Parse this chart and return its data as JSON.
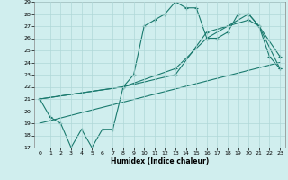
{
  "xlabel": "Humidex (Indice chaleur)",
  "bg_color": "#d0eeee",
  "line_color": "#1a7a6e",
  "grid_color": "#b0d8d8",
  "xlim": [
    -0.5,
    23.5
  ],
  "ylim": [
    17,
    29
  ],
  "xticks": [
    0,
    1,
    2,
    3,
    4,
    5,
    6,
    7,
    8,
    9,
    10,
    11,
    12,
    13,
    14,
    15,
    16,
    17,
    18,
    19,
    20,
    21,
    22,
    23
  ],
  "yticks": [
    17,
    18,
    19,
    20,
    21,
    22,
    23,
    24,
    25,
    26,
    27,
    28,
    29
  ],
  "series": [
    {
      "x": [
        0,
        1,
        2,
        3,
        4,
        5,
        6,
        7,
        8,
        9,
        10,
        11,
        12,
        13,
        14,
        15,
        16,
        17,
        18,
        19,
        20,
        21,
        22,
        23
      ],
      "y": [
        21,
        19.5,
        19,
        17,
        18.5,
        17,
        18.5,
        18.5,
        22,
        23,
        27,
        27.5,
        28,
        29,
        28.5,
        28.5,
        26,
        26,
        26.5,
        28,
        28,
        27,
        24.5,
        23.5
      ],
      "marker": "+"
    },
    {
      "x": [
        0,
        23
      ],
      "y": [
        19,
        24
      ],
      "marker": null
    },
    {
      "x": [
        0,
        8,
        13,
        16,
        20,
        21,
        23
      ],
      "y": [
        21,
        22,
        23,
        26.5,
        27.5,
        27,
        23.5
      ],
      "marker": "+"
    },
    {
      "x": [
        0,
        8,
        13,
        16,
        20,
        21,
        23
      ],
      "y": [
        21,
        22,
        23.5,
        26,
        28,
        27,
        24.5
      ],
      "marker": "+"
    }
  ]
}
